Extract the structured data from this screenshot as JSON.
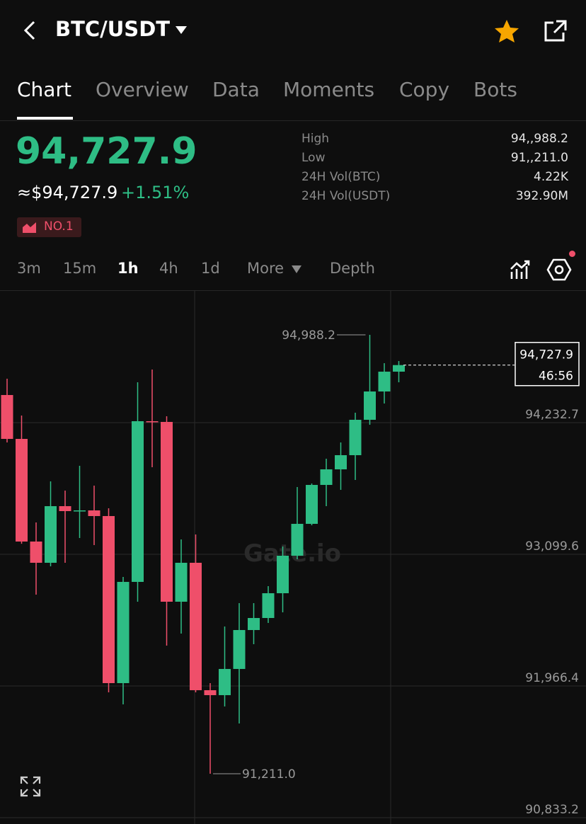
{
  "header": {
    "pair": "BTC/USDT"
  },
  "tabs": [
    "Chart",
    "Overview",
    "Data",
    "Moments",
    "Copy",
    "Bots"
  ],
  "ticker": {
    "last_price": "94,727.9",
    "usd_price": "≈$94,727.9",
    "change": "+1.51%",
    "badge": "NO.1",
    "stats": [
      {
        "label": "High",
        "value": "94,,988.2"
      },
      {
        "label": "Low",
        "value": "91,,211.0"
      },
      {
        "label": "24H Vol(BTC)",
        "value": "4.22K"
      },
      {
        "label": "24H Vol(USDT)",
        "value": "392.90M"
      }
    ]
  },
  "intervals": [
    "3m",
    "15m",
    "1h",
    "4h",
    "1d",
    "More",
    "Depth"
  ],
  "chart_data": {
    "type": "candlestick",
    "grid": true,
    "up_color": "#2ebd85",
    "down_color": "#ef4f6a",
    "watermark": "Gate.io",
    "countdown": "46:56",
    "ylim": [
      90833.2,
      95372.0
    ],
    "yticks": [
      {
        "value": 94232.7,
        "label": "94,232.7"
      },
      {
        "value": 93099.6,
        "label": "93,099.6"
      },
      {
        "value": 91966.4,
        "label": "91,966.4"
      },
      {
        "value": 90833.2,
        "label": "90,833.2"
      }
    ],
    "ohlc": [
      [
        94470.3,
        94610.4,
        94062.1,
        94092.6
      ],
      [
        94092.6,
        94293.6,
        93190.0,
        93209.2
      ],
      [
        93209.2,
        93373.7,
        92752.3,
        93026.5
      ],
      [
        93026.5,
        93727.1,
        92996.0,
        93513.8
      ],
      [
        93513.8,
        93647.9,
        93026.5,
        93471.2
      ],
      [
        93471.2,
        93861.1,
        93239.7,
        93477.3
      ],
      [
        93477.3,
        93690.5,
        93178.8,
        93428.6
      ],
      [
        93428.6,
        93495.6,
        91911.6,
        91990.8
      ],
      [
        91990.8,
        92904.6,
        91808.1,
        92862.0
      ],
      [
        92862.0,
        94579.9,
        92691.4,
        94244.9
      ],
      [
        94244.9,
        94689.6,
        93848.9,
        94238.8
      ],
      [
        94238.8,
        94287.5,
        92313.7,
        92691.4
      ],
      [
        92691.4,
        93227.5,
        92417.3,
        93026.5
      ],
      [
        93026.5,
        93270.2,
        91911.6,
        91929.9
      ],
      [
        91929.9,
        91990.8,
        91211.0,
        91887.3
      ],
      [
        91887.3,
        92478.2,
        91789.8,
        92112.7
      ],
      [
        92112.7,
        92679.2,
        91643.6,
        92447.7
      ],
      [
        92447.7,
        92679.2,
        92325.9,
        92551.3
      ],
      [
        92551.3,
        92825.4,
        92508.7,
        92764.5
      ],
      [
        92764.5,
        93166.6,
        92600.0,
        93087.4
      ],
      [
        93087.4,
        93678.3,
        93056.9,
        93361.5
      ],
      [
        93361.5,
        93708.8,
        93349.4,
        93696.6
      ],
      [
        93696.6,
        93922.0,
        93513.8,
        93830.6
      ],
      [
        93830.6,
        94062.1,
        93654.0,
        93952.5
      ],
      [
        93952.5,
        94318.0,
        93739.2,
        94257.1
      ],
      [
        94257.1,
        94988.2,
        94214.4,
        94500.7
      ],
      [
        94500.7,
        94744.4,
        94397.2,
        94671.3
      ],
      [
        94671.3,
        94762.7,
        94579.9,
        94727.9
      ]
    ],
    "annotations": [
      {
        "value": 94988.2,
        "label": "94,988.2"
      },
      {
        "value": 91211.0,
        "label": "91,211.0"
      },
      {
        "value": 94727.9,
        "label": "94,727.9"
      }
    ]
  }
}
